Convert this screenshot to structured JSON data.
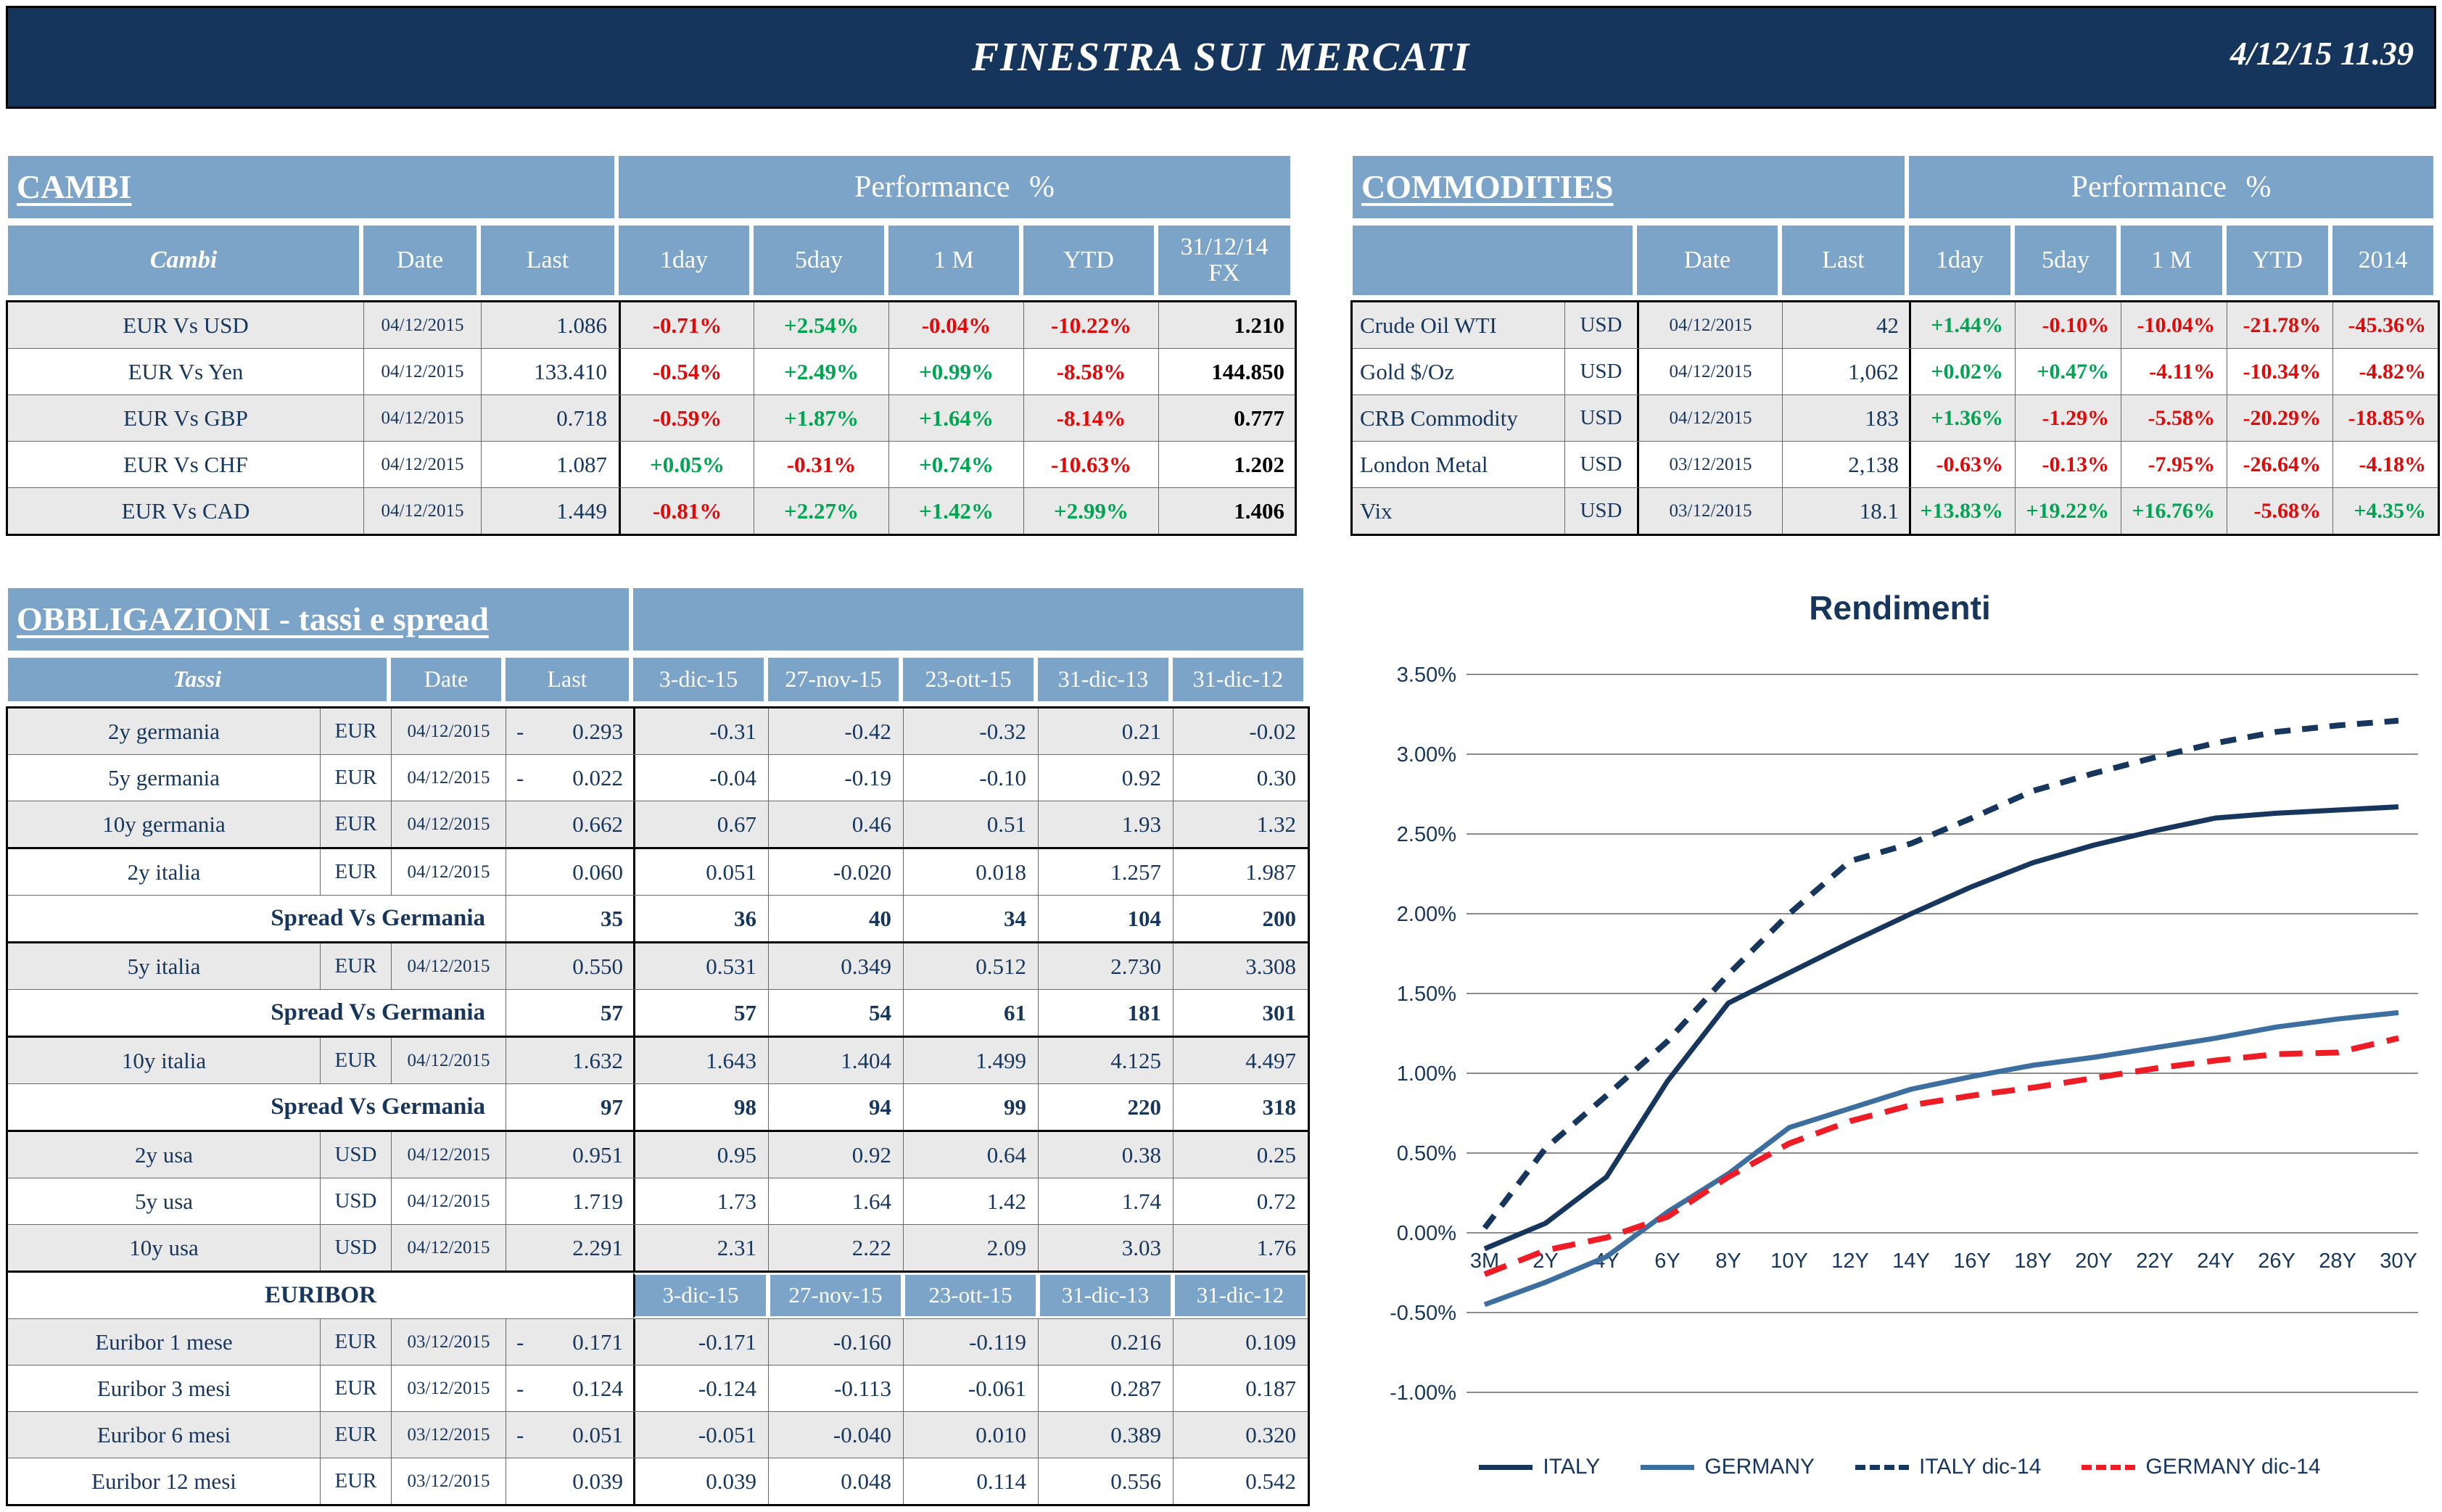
{
  "header": {
    "title": "FINESTRA SUI MERCATI",
    "datetime": "4/12/15 11.39"
  },
  "colors": {
    "navy_bar": "#15355C",
    "header_blue": "#7CA3C8",
    "row_shade": "#E9E9E9",
    "positive": "#00A453",
    "negative": "#E00A0A",
    "grid": "#8a8a8a",
    "italy_line": "#17365D",
    "germany_line": "#3C6E9F",
    "germany_dic14_line": "#EE1C25"
  },
  "cambi": {
    "title": "CAMBI",
    "perf_header": "Performance %",
    "columns": [
      "Cambi",
      "Date",
      "Last",
      "1day",
      "5day",
      "1 M",
      "YTD",
      "31/12/14 FX"
    ],
    "rows": [
      {
        "name": "EUR Vs USD",
        "date": "04/12/2015",
        "last": "1.086",
        "d1": "-0.71%",
        "d5": "+2.54%",
        "m1": "-0.04%",
        "ytd": "-10.22%",
        "fx": "1.210"
      },
      {
        "name": "EUR Vs Yen",
        "date": "04/12/2015",
        "last": "133.410",
        "d1": "-0.54%",
        "d5": "+2.49%",
        "m1": "+0.99%",
        "ytd": "-8.58%",
        "fx": "144.850"
      },
      {
        "name": "EUR Vs GBP",
        "date": "04/12/2015",
        "last": "0.718",
        "d1": "-0.59%",
        "d5": "+1.87%",
        "m1": "+1.64%",
        "ytd": "-8.14%",
        "fx": "0.777"
      },
      {
        "name": "EUR Vs CHF",
        "date": "04/12/2015",
        "last": "1.087",
        "d1": "+0.05%",
        "d5": "-0.31%",
        "m1": "+0.74%",
        "ytd": "-10.63%",
        "fx": "1.202"
      },
      {
        "name": "EUR Vs CAD",
        "date": "04/12/2015",
        "last": "1.449",
        "d1": "-0.81%",
        "d5": "+2.27%",
        "m1": "+1.42%",
        "ytd": "+2.99%",
        "fx": "1.406"
      }
    ]
  },
  "commodities": {
    "title": "COMMODITIES",
    "perf_header": "Performance %",
    "columns": [
      "",
      "Date",
      "Last",
      "1day",
      "5day",
      "1 M",
      "YTD",
      "2014"
    ],
    "rows": [
      {
        "name": "Crude Oil WTI",
        "ccy": "USD",
        "date": "04/12/2015",
        "last": "42",
        "d1": "+1.44%",
        "d5": "-0.10%",
        "m1": "-10.04%",
        "ytd": "-21.78%",
        "y2014": "-45.36%"
      },
      {
        "name": "Gold $/Oz",
        "ccy": "USD",
        "date": "04/12/2015",
        "last": "1,062",
        "d1": "+0.02%",
        "d5": "+0.47%",
        "m1": "-4.11%",
        "ytd": "-10.34%",
        "y2014": "-4.82%"
      },
      {
        "name": "CRB Commodity",
        "ccy": "USD",
        "date": "04/12/2015",
        "last": "183",
        "d1": "+1.36%",
        "d5": "-1.29%",
        "m1": "-5.58%",
        "ytd": "-20.29%",
        "y2014": "-18.85%"
      },
      {
        "name": "London Metal",
        "ccy": "USD",
        "date": "03/12/2015",
        "last": "2,138",
        "d1": "-0.63%",
        "d5": "-0.13%",
        "m1": "-7.95%",
        "ytd": "-26.64%",
        "y2014": "-4.18%"
      },
      {
        "name": "Vix",
        "ccy": "USD",
        "date": "03/12/2015",
        "last": "18.1",
        "d1": "+13.83%",
        "d5": "+19.22%",
        "m1": "+16.76%",
        "ytd": "-5.68%",
        "y2014": "+4.35%"
      }
    ]
  },
  "obbligazioni": {
    "title": "OBBLIGAZIONI - tassi e spread",
    "columns": [
      "Tassi",
      "Date",
      "Last",
      "3-dic-15",
      "27-nov-15",
      "23-ott-15",
      "31-dic-13",
      "31-dic-12"
    ],
    "euribor_columns": [
      "3-dic-15",
      "27-nov-15",
      "23-ott-15",
      "31-dic-13",
      "31-dic-12"
    ],
    "rows": [
      {
        "type": "data",
        "shade": true,
        "grp": false,
        "name": "2y germania",
        "ccy": "EUR",
        "date": "04/12/2015",
        "last_minus": "-",
        "last": "0.293",
        "hist": [
          "-0.31",
          "-0.42",
          "-0.32",
          "0.21",
          "-0.02"
        ]
      },
      {
        "type": "data",
        "shade": false,
        "grp": false,
        "name": "5y germania",
        "ccy": "EUR",
        "date": "04/12/2015",
        "last_minus": "-",
        "last": "0.022",
        "hist": [
          "-0.04",
          "-0.19",
          "-0.10",
          "0.92",
          "0.30"
        ]
      },
      {
        "type": "data",
        "shade": true,
        "grp": false,
        "name": "10y germania",
        "ccy": "EUR",
        "date": "04/12/2015",
        "last_minus": "",
        "last": "0.662",
        "hist": [
          "0.67",
          "0.46",
          "0.51",
          "1.93",
          "1.32"
        ]
      },
      {
        "type": "data",
        "shade": false,
        "grp": true,
        "name": "2y italia",
        "ccy": "EUR",
        "date": "04/12/2015",
        "last_minus": "",
        "last": "0.060",
        "hist": [
          "0.051",
          "-0.020",
          "0.018",
          "1.257",
          "1.987"
        ]
      },
      {
        "type": "spread",
        "shade": false,
        "grp": false,
        "label": "Spread Vs Germania",
        "last": "35",
        "hist": [
          "36",
          "40",
          "34",
          "104",
          "200"
        ]
      },
      {
        "type": "data",
        "shade": true,
        "grp": true,
        "name": "5y italia",
        "ccy": "EUR",
        "date": "04/12/2015",
        "last_minus": "",
        "last": "0.550",
        "hist": [
          "0.531",
          "0.349",
          "0.512",
          "2.730",
          "3.308"
        ]
      },
      {
        "type": "spread",
        "shade": false,
        "grp": false,
        "label": "Spread Vs Germania",
        "last": "57",
        "hist": [
          "57",
          "54",
          "61",
          "181",
          "301"
        ]
      },
      {
        "type": "data",
        "shade": true,
        "grp": true,
        "name": "10y italia",
        "ccy": "EUR",
        "date": "04/12/2015",
        "last_minus": "",
        "last": "1.632",
        "hist": [
          "1.643",
          "1.404",
          "1.499",
          "4.125",
          "4.497"
        ]
      },
      {
        "type": "spread",
        "shade": false,
        "grp": false,
        "label": "Spread Vs Germania",
        "last": "97",
        "hist": [
          "98",
          "94",
          "99",
          "220",
          "318"
        ]
      },
      {
        "type": "data",
        "shade": true,
        "grp": true,
        "name": "2y usa",
        "ccy": "USD",
        "date": "04/12/2015",
        "last_minus": "",
        "last": "0.951",
        "hist": [
          "0.95",
          "0.92",
          "0.64",
          "0.38",
          "0.25"
        ]
      },
      {
        "type": "data",
        "shade": false,
        "grp": false,
        "name": "5y usa",
        "ccy": "USD",
        "date": "04/12/2015",
        "last_minus": "",
        "last": "1.719",
        "hist": [
          "1.73",
          "1.64",
          "1.42",
          "1.74",
          "0.72"
        ]
      },
      {
        "type": "data",
        "shade": true,
        "grp": false,
        "name": "10y usa",
        "ccy": "USD",
        "date": "04/12/2015",
        "last_minus": "",
        "last": "2.291",
        "hist": [
          "2.31",
          "2.22",
          "2.09",
          "3.03",
          "1.76"
        ]
      },
      {
        "type": "section",
        "shade": false,
        "grp": true,
        "label": "EURIBOR"
      },
      {
        "type": "data",
        "shade": true,
        "grp": false,
        "name": "Euribor 1 mese",
        "ccy": "EUR",
        "date": "03/12/2015",
        "last_minus": "-",
        "last": "0.171",
        "hist": [
          "-0.171",
          "-0.160",
          "-0.119",
          "0.216",
          "0.109"
        ]
      },
      {
        "type": "data",
        "shade": false,
        "grp": false,
        "name": "Euribor 3 mesi",
        "ccy": "EUR",
        "date": "03/12/2015",
        "last_minus": "-",
        "last": "0.124",
        "hist": [
          "-0.124",
          "-0.113",
          "-0.061",
          "0.287",
          "0.187"
        ]
      },
      {
        "type": "data",
        "shade": true,
        "grp": false,
        "name": "Euribor 6 mesi",
        "ccy": "EUR",
        "date": "03/12/2015",
        "last_minus": "-",
        "last": "0.051",
        "hist": [
          "-0.051",
          "-0.040",
          "0.010",
          "0.389",
          "0.320"
        ]
      },
      {
        "type": "data",
        "shade": false,
        "grp": false,
        "name": "Euribor 12 mesi",
        "ccy": "EUR",
        "date": "03/12/2015",
        "last_minus": "",
        "last": "0.039",
        "hist": [
          "0.039",
          "0.048",
          "0.114",
          "0.556",
          "0.542"
        ]
      }
    ]
  },
  "chart_data": {
    "type": "line",
    "title": "Rendimenti",
    "categories": [
      "3M",
      "2Y",
      "4Y",
      "6Y",
      "8Y",
      "10Y",
      "12Y",
      "14Y",
      "16Y",
      "18Y",
      "20Y",
      "22Y",
      "24Y",
      "26Y",
      "28Y",
      "30Y"
    ],
    "ylim": [
      -1.0,
      3.5
    ],
    "y_tick_step": 0.5,
    "y_tick_labels": [
      "3.50%",
      "3.00%",
      "2.50%",
      "2.00%",
      "1.50%",
      "1.00%",
      "0.50%",
      "0.00%",
      "-0.50%",
      "-1.00%"
    ],
    "grid": true,
    "legend_position": "bottom",
    "series": [
      {
        "name": "ITALY",
        "color": "#17365D",
        "style": "solid",
        "values": [
          -0.1,
          0.06,
          0.35,
          0.95,
          1.44,
          1.63,
          1.82,
          2.0,
          2.17,
          2.32,
          2.43,
          2.52,
          2.6,
          2.63,
          2.65,
          2.67
        ]
      },
      {
        "name": "GERMANY",
        "color": "#3C6E9F",
        "style": "solid",
        "values": [
          -0.45,
          -0.31,
          -0.15,
          0.13,
          0.37,
          0.66,
          0.78,
          0.9,
          0.98,
          1.05,
          1.1,
          1.16,
          1.22,
          1.29,
          1.34,
          1.38
        ]
      },
      {
        "name": "ITALY dic-14",
        "color": "#17365D",
        "style": "dashed",
        "values": [
          0.03,
          0.53,
          0.86,
          1.2,
          1.62,
          2.0,
          2.33,
          2.44,
          2.6,
          2.77,
          2.88,
          2.98,
          3.07,
          3.14,
          3.18,
          3.21
        ]
      },
      {
        "name": "GERMANY dic-14",
        "color": "#EE1C25",
        "style": "dashed",
        "values": [
          -0.26,
          -0.11,
          -0.03,
          0.1,
          0.35,
          0.56,
          0.7,
          0.8,
          0.86,
          0.91,
          0.97,
          1.03,
          1.08,
          1.12,
          1.13,
          1.22
        ]
      }
    ]
  }
}
